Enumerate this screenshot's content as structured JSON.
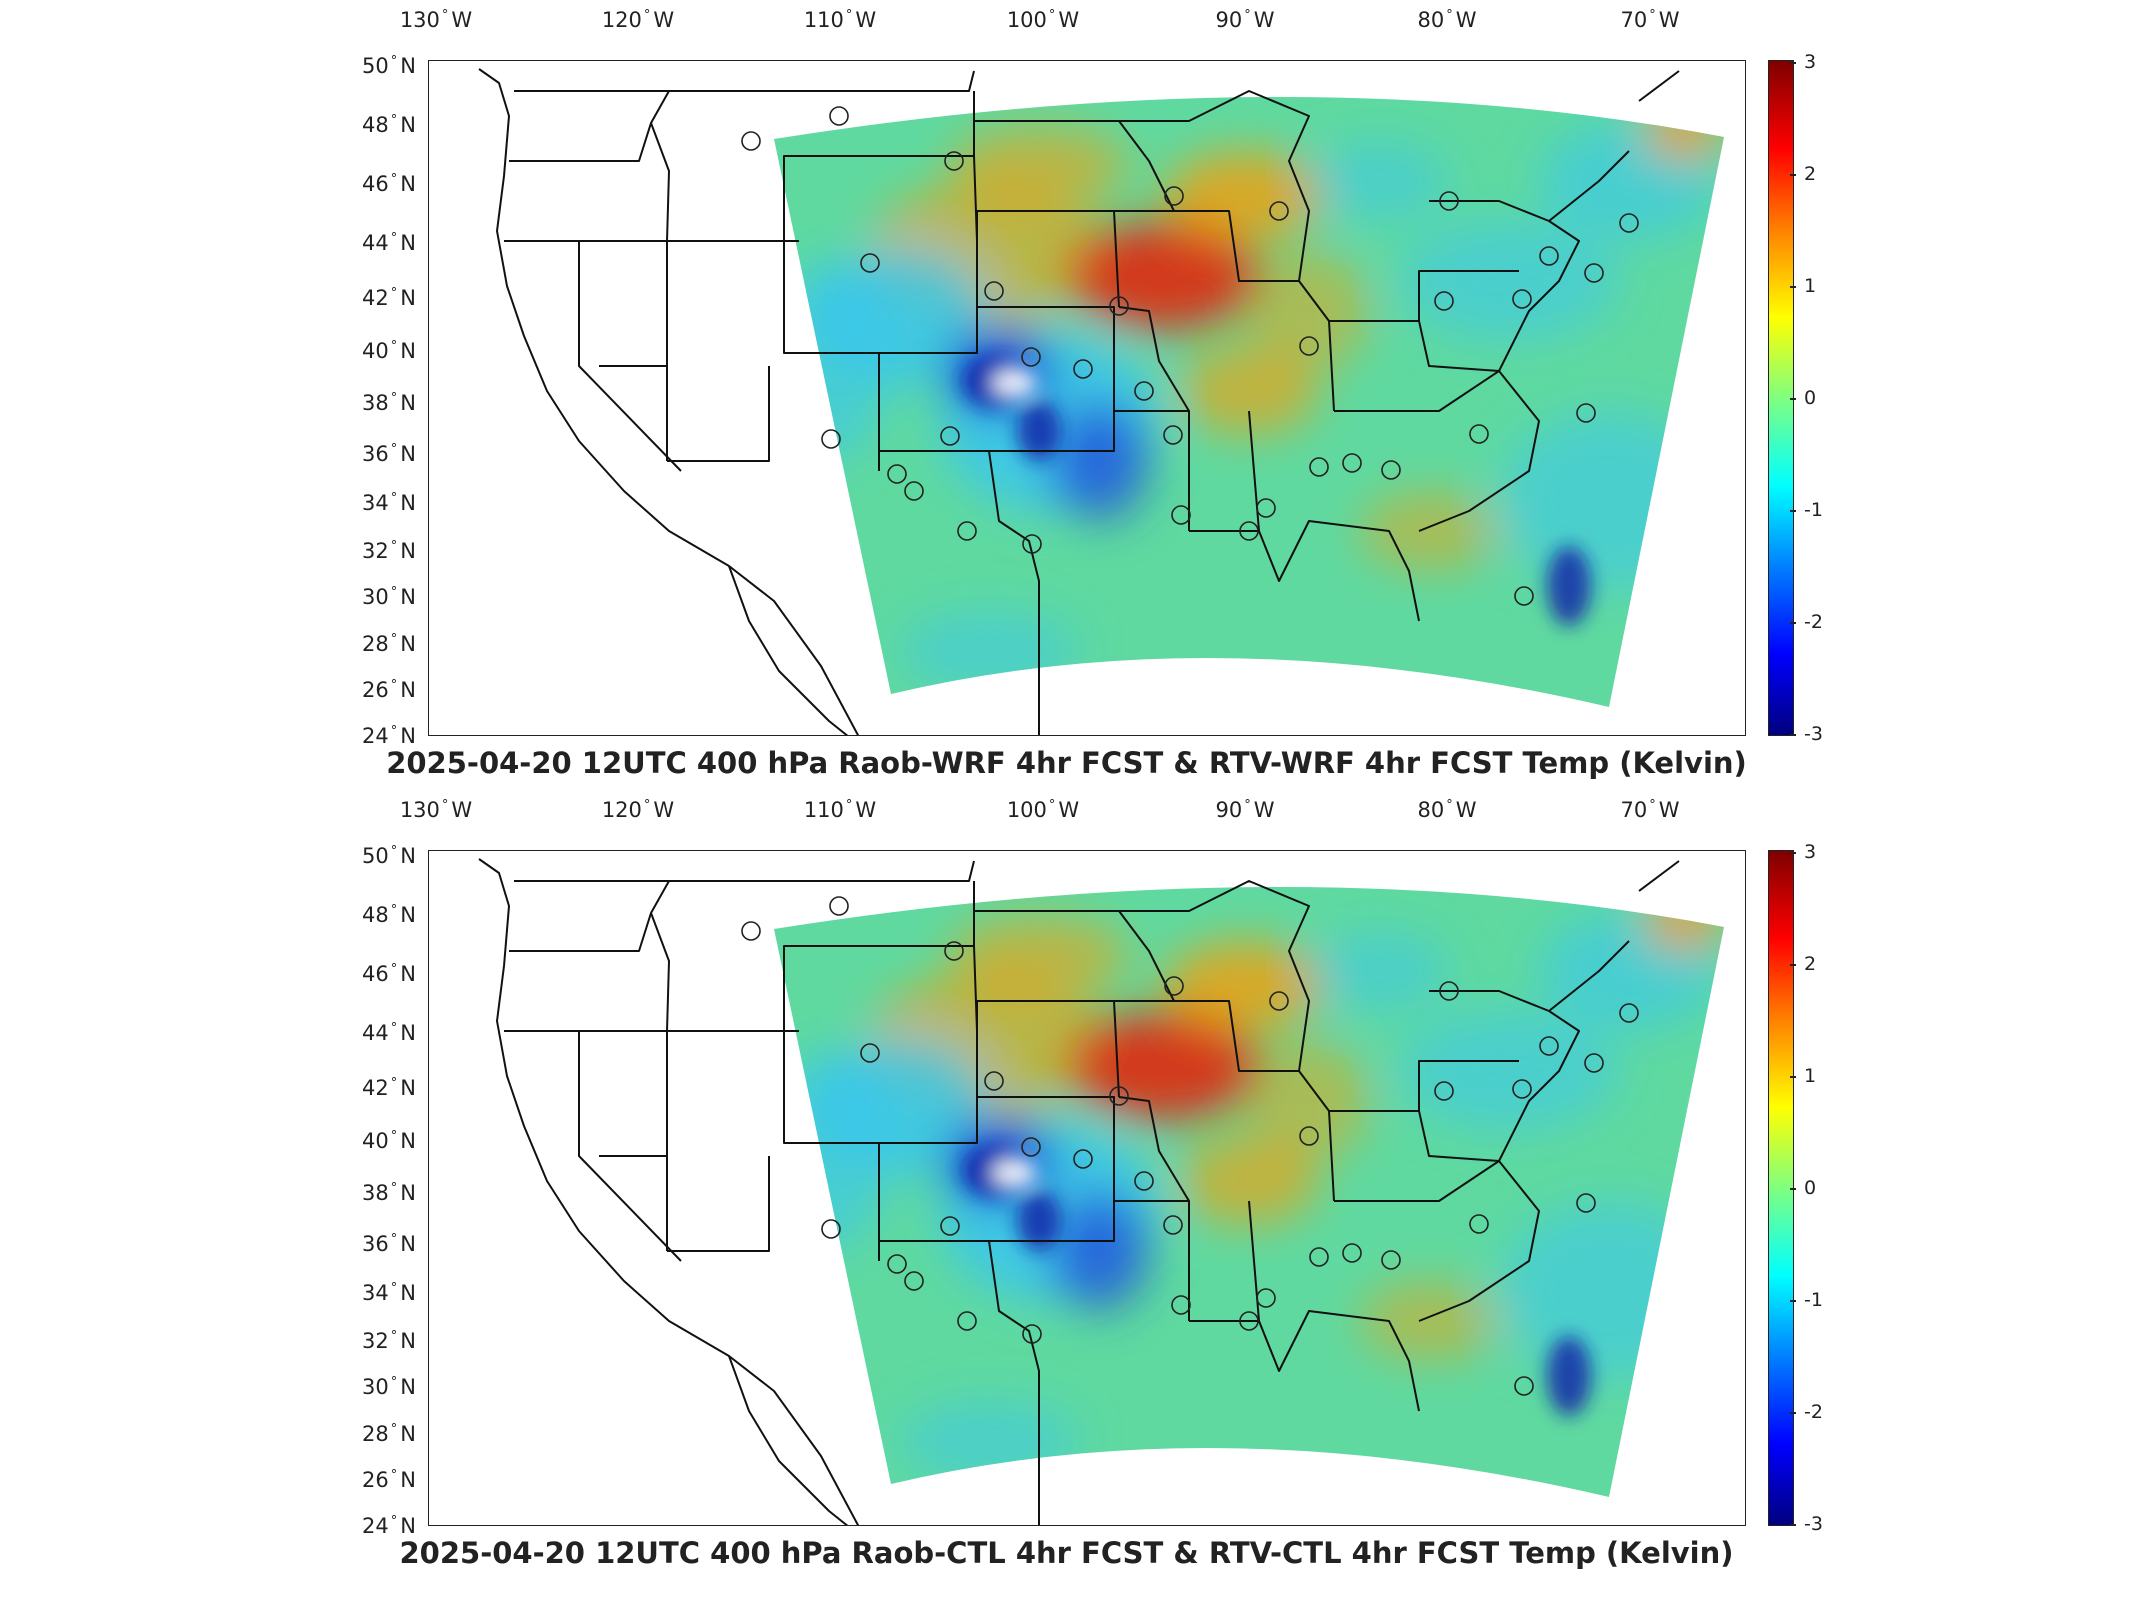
{
  "panels": [
    {
      "title": "2025-04-20 12UTC 400 hPa Raob-WRF 4hr FCST & RTV-WRF 4hr FCST Temp (Kelvin)"
    },
    {
      "title": "2025-04-20 12UTC 400 hPa Raob-CTL 4hr FCST & RTV-CTL 4hr FCST Temp (Kelvin)"
    }
  ],
  "longitude_labels": [
    "130",
    "120",
    "110",
    "100",
    "90",
    "80",
    "70"
  ],
  "longitude_hemisphere": "W",
  "latitude_labels": [
    "50",
    "48",
    "46",
    "44",
    "42",
    "40",
    "38",
    "36",
    "34",
    "32",
    "30",
    "28",
    "26",
    "24"
  ],
  "latitude_hemisphere": "N",
  "colorbar": {
    "ticks": [
      "3",
      "2",
      "1",
      "0",
      "-1",
      "-2",
      "-3"
    ],
    "colormap": "jet",
    "colors": [
      "#7f0000",
      "#ff0000",
      "#ff8000",
      "#ffff00",
      "#80ff80",
      "#00ffff",
      "#0080ff",
      "#0000ff",
      "#00007f"
    ]
  },
  "map_colors": {
    "field_base": "#5fd9a0",
    "warm": "#ff9900",
    "hot": "#e02a10",
    "cold": "#1638d8",
    "cool": "#39c6f0",
    "outline": "#111111"
  }
}
